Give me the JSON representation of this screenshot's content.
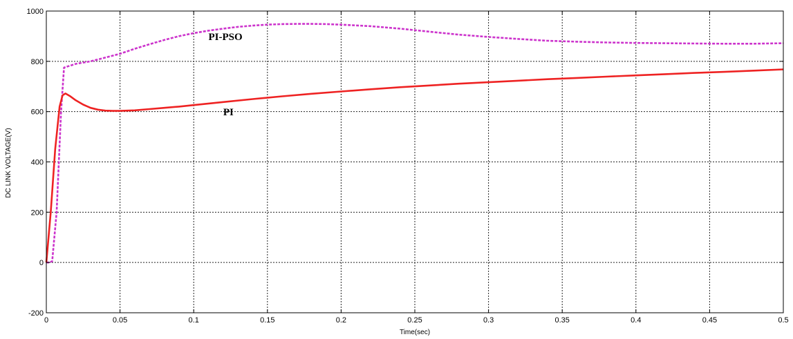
{
  "chart_data": {
    "type": "line",
    "xlabel": "Time(sec)",
    "ylabel": "DC LINK VOLTAGE(V)",
    "xlim": [
      0,
      0.5
    ],
    "ylim": [
      -200,
      1000
    ],
    "xticks": [
      0,
      0.05,
      0.1,
      0.15,
      0.2,
      0.25,
      0.3,
      0.35,
      0.4,
      0.45,
      0.5
    ],
    "xtick_labels": [
      "0",
      "0.05",
      "0.1",
      "0.15",
      "0.2",
      "0.25",
      "0.3",
      "0.35",
      "0.4",
      "0.45",
      "0.5"
    ],
    "yticks": [
      -200,
      0,
      200,
      400,
      600,
      800,
      1000
    ],
    "ytick_labels": [
      "-200",
      "0",
      "200",
      "400",
      "600",
      "800",
      "1000"
    ],
    "grid": true,
    "series": [
      {
        "name": "PI-PSO",
        "color": "#cc33cc",
        "style": "dashed",
        "x": [
          0,
          0.002,
          0.004,
          0.007,
          0.01,
          0.012,
          0.02,
          0.03,
          0.04,
          0.05,
          0.06,
          0.07,
          0.08,
          0.09,
          0.1,
          0.11,
          0.12,
          0.13,
          0.14,
          0.15,
          0.16,
          0.17,
          0.18,
          0.19,
          0.2,
          0.22,
          0.24,
          0.26,
          0.28,
          0.3,
          0.32,
          0.34,
          0.36,
          0.38,
          0.4,
          0.42,
          0.44,
          0.46,
          0.48,
          0.5
        ],
        "y": [
          0,
          0,
          5,
          200,
          600,
          775,
          790,
          800,
          815,
          830,
          850,
          868,
          885,
          900,
          912,
          922,
          930,
          937,
          942,
          946,
          948,
          949,
          949,
          948,
          946,
          940,
          930,
          918,
          906,
          897,
          889,
          882,
          878,
          875,
          873,
          872,
          871,
          870,
          870,
          872
        ]
      },
      {
        "name": "PI",
        "color": "#ee2222",
        "style": "solid",
        "x": [
          0,
          0.003,
          0.006,
          0.009,
          0.011,
          0.013,
          0.016,
          0.02,
          0.025,
          0.03,
          0.035,
          0.04,
          0.045,
          0.05,
          0.06,
          0.07,
          0.08,
          0.09,
          0.1,
          0.12,
          0.14,
          0.16,
          0.18,
          0.2,
          0.22,
          0.24,
          0.26,
          0.28,
          0.3,
          0.32,
          0.34,
          0.36,
          0.38,
          0.4,
          0.42,
          0.44,
          0.46,
          0.48,
          0.5
        ],
        "y": [
          0,
          200,
          450,
          620,
          665,
          672,
          662,
          645,
          628,
          615,
          608,
          604,
          603,
          603,
          605,
          610,
          615,
          620,
          626,
          638,
          650,
          661,
          671,
          680,
          689,
          697,
          704,
          711,
          717,
          723,
          729,
          734,
          739,
          744,
          749,
          754,
          758,
          763,
          768
        ]
      }
    ],
    "annotations": [
      {
        "text": "PI-PSO",
        "x": 0.11,
        "y": 885
      },
      {
        "text": "PI",
        "x": 0.12,
        "y": 585
      }
    ]
  }
}
